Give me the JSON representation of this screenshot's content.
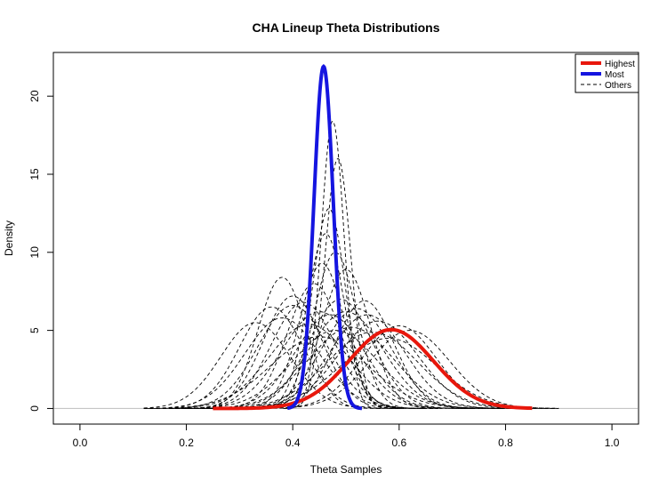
{
  "chart_data": {
    "type": "line",
    "title": "CHA Lineup Theta Distributions",
    "xlabel": "Theta Samples",
    "ylabel": "Density",
    "xlim": [
      -0.05,
      1.05
    ],
    "ylim": [
      -1.0,
      22.8
    ],
    "xticks": [
      "0.0",
      "0.2",
      "0.4",
      "0.6",
      "0.8",
      "1.0"
    ],
    "yticks": [
      "0",
      "5",
      "10",
      "15",
      "20"
    ],
    "legend": {
      "position": "top-right",
      "entries": [
        {
          "label": "Highest",
          "color": "#e8170c",
          "style": "solid"
        },
        {
          "label": "Most",
          "color": "#1515e0",
          "style": "solid"
        },
        {
          "label": "Others",
          "color": "#000000",
          "style": "dashed"
        }
      ]
    },
    "baseline": {
      "y": 0,
      "color": "#bebebe"
    },
    "series": [
      {
        "name": "Highest",
        "color": "#e8170c",
        "style": "solid",
        "mean": 0.585,
        "sd": 0.079,
        "peak": 5.05,
        "range": [
          0.25,
          0.85
        ]
      },
      {
        "name": "Most",
        "color": "#1515e0",
        "style": "solid",
        "mean": 0.458,
        "sd": 0.0182,
        "peak": 21.9,
        "range": [
          0.39,
          0.53
        ]
      },
      {
        "name": "Others",
        "color": "#000000",
        "style": "dashed",
        "curves": [
          {
            "mean": 0.475,
            "sd": 0.0215,
            "peak": 18.4
          },
          {
            "mean": 0.485,
            "sd": 0.0245,
            "peak": 16.0
          },
          {
            "mean": 0.468,
            "sd": 0.031,
            "peak": 12.8
          },
          {
            "mean": 0.48,
            "sd": 0.04,
            "peak": 10.0
          },
          {
            "mean": 0.455,
            "sd": 0.042,
            "peak": 9.3
          },
          {
            "mean": 0.462,
            "sd": 0.035,
            "peak": 11.2
          },
          {
            "mean": 0.38,
            "sd": 0.045,
            "peak": 8.4
          },
          {
            "mean": 0.44,
            "sd": 0.05,
            "peak": 8.0
          },
          {
            "mean": 0.5,
            "sd": 0.045,
            "peak": 8.9
          },
          {
            "mean": 0.36,
            "sd": 0.06,
            "peak": 6.5
          },
          {
            "mean": 0.4,
            "sd": 0.065,
            "peak": 6.6
          },
          {
            "mean": 0.42,
            "sd": 0.06,
            "peak": 6.8
          },
          {
            "mean": 0.45,
            "sd": 0.07,
            "peak": 6.2
          },
          {
            "mean": 0.47,
            "sd": 0.065,
            "peak": 6.0
          },
          {
            "mean": 0.5,
            "sd": 0.07,
            "peak": 6.2
          },
          {
            "mean": 0.52,
            "sd": 0.065,
            "peak": 6.4
          },
          {
            "mean": 0.54,
            "sd": 0.07,
            "peak": 6.0
          },
          {
            "mean": 0.56,
            "sd": 0.075,
            "peak": 5.6
          },
          {
            "mean": 0.6,
            "sd": 0.07,
            "peak": 5.3
          },
          {
            "mean": 0.62,
            "sd": 0.075,
            "peak": 5.0
          },
          {
            "mean": 0.33,
            "sd": 0.065,
            "peak": 5.5
          },
          {
            "mean": 0.38,
            "sd": 0.07,
            "peak": 5.8
          },
          {
            "mean": 0.43,
            "sd": 0.075,
            "peak": 5.4
          },
          {
            "mean": 0.48,
            "sd": 0.08,
            "peak": 5.0
          },
          {
            "mean": 0.51,
            "sd": 0.08,
            "peak": 5.2
          },
          {
            "mean": 0.55,
            "sd": 0.085,
            "peak": 4.9
          },
          {
            "mean": 0.4,
            "sd": 0.055,
            "peak": 7.2
          },
          {
            "mean": 0.49,
            "sd": 0.06,
            "peak": 7.0
          },
          {
            "mean": 0.535,
            "sd": 0.055,
            "peak": 6.9
          },
          {
            "mean": 0.45,
            "sd": 0.09,
            "peak": 4.6
          },
          {
            "mean": 0.58,
            "sd": 0.09,
            "peak": 4.5
          }
        ]
      }
    ]
  }
}
